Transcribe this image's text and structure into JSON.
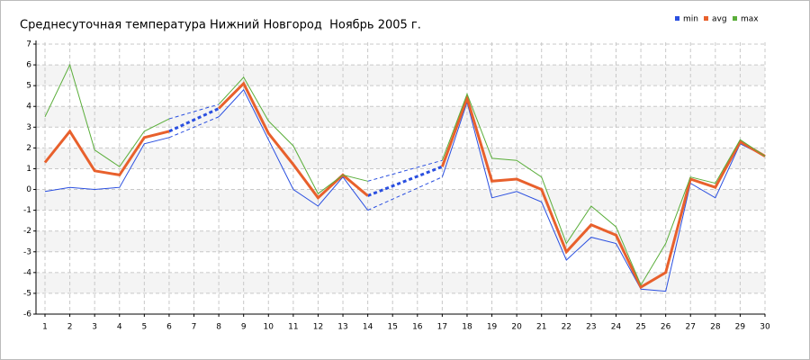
{
  "chart_data": {
    "type": "line",
    "title": "Среднесуточная температура Нижний Новгород  Ноябрь 2005 г.",
    "x": [
      1,
      2,
      3,
      4,
      5,
      6,
      7,
      8,
      9,
      10,
      11,
      12,
      13,
      14,
      15,
      16,
      17,
      18,
      19,
      20,
      21,
      22,
      23,
      24,
      25,
      26,
      27,
      28,
      29,
      30
    ],
    "series": [
      {
        "name": "min",
        "color": "#2a4fe0",
        "values": [
          -0.1,
          0.1,
          0.0,
          0.1,
          2.2,
          2.5,
          null,
          3.5,
          4.8,
          2.4,
          0.0,
          -0.8,
          0.6,
          -1.0,
          null,
          null,
          0.6,
          4.2,
          -0.4,
          -0.1,
          -0.6,
          -3.4,
          -2.3,
          -2.6,
          -4.8,
          -4.9,
          0.3,
          -0.4,
          2.2,
          1.6
        ]
      },
      {
        "name": "avg",
        "color": "#e8602c",
        "values": [
          1.3,
          2.8,
          0.9,
          0.7,
          2.5,
          2.8,
          null,
          3.9,
          5.1,
          2.7,
          1.2,
          -0.4,
          0.7,
          -0.3,
          null,
          null,
          1.1,
          4.4,
          0.4,
          0.5,
          0.0,
          -3.0,
          -1.7,
          -2.2,
          -4.7,
          -4.0,
          0.5,
          0.1,
          2.3,
          1.6
        ]
      },
      {
        "name": "max",
        "color": "#5aae3a",
        "values": [
          3.5,
          6.0,
          1.9,
          1.1,
          2.8,
          3.4,
          null,
          4.1,
          5.4,
          3.3,
          2.1,
          -0.2,
          0.7,
          0.4,
          null,
          null,
          1.4,
          4.6,
          1.5,
          1.4,
          0.6,
          -2.6,
          -0.8,
          -1.8,
          -4.6,
          -2.6,
          0.6,
          0.3,
          2.4,
          1.6
        ]
      }
    ],
    "xlim": [
      1,
      30
    ],
    "xticks": [
      1,
      2,
      3,
      4,
      5,
      6,
      7,
      8,
      9,
      10,
      11,
      12,
      13,
      14,
      15,
      16,
      17,
      18,
      19,
      20,
      21,
      22,
      23,
      24,
      25,
      26,
      27,
      28,
      29,
      30
    ],
    "ylim": [
      -6,
      7
    ],
    "yticks": [
      -6,
      -5,
      -4,
      -3,
      -2,
      -1,
      0,
      1,
      2,
      3,
      4,
      5,
      6,
      7
    ],
    "grid": true,
    "legend": "top-right"
  }
}
